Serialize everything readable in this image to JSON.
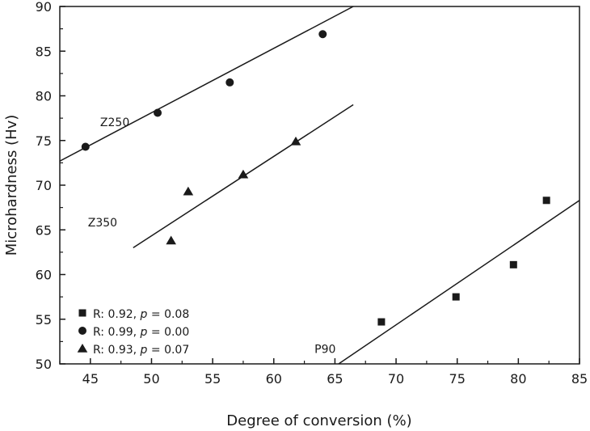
{
  "chart_data": {
    "type": "scatter",
    "xlabel": "Degree of conversion (%)",
    "ylabel": "Microhardness (Hv)",
    "xlim": [
      42.5,
      85
    ],
    "ylim": [
      50,
      90
    ],
    "xticks": [
      "45",
      "50",
      "55",
      "60",
      "65",
      "70",
      "75",
      "80",
      "85"
    ],
    "yticks": [
      "50",
      "55",
      "60",
      "65",
      "70",
      "75",
      "80",
      "85",
      "90"
    ],
    "grid": false,
    "legend_position": "bottom-left",
    "series": [
      {
        "name": "P90",
        "marker": "square",
        "x": [
          68.8,
          74.9,
          79.6,
          82.3
        ],
        "y": [
          54.7,
          57.5,
          61.1,
          68.3
        ],
        "fit": {
          "x": [
            65.3,
            85
          ],
          "y": [
            50,
            68.3
          ]
        }
      },
      {
        "name": "Z250",
        "marker": "circle",
        "x": [
          44.6,
          50.5,
          56.4,
          64.0
        ],
        "y": [
          74.3,
          78.1,
          81.5,
          86.9
        ],
        "fit": {
          "x": [
            42.5,
            66.5
          ],
          "y": [
            72.7,
            90
          ]
        }
      },
      {
        "name": "Z350",
        "marker": "triangle",
        "x": [
          51.6,
          53.0,
          57.5,
          61.8
        ],
        "y": [
          63.8,
          69.3,
          71.2,
          74.9
        ],
        "fit": {
          "x": [
            48.5,
            66.5
          ],
          "y": [
            63.0,
            79.0
          ]
        }
      }
    ],
    "legend": [
      {
        "marker": "square",
        "r_text": "R: 0.92, ",
        "p_label": "p",
        "p_text": " = 0.08"
      },
      {
        "marker": "circle",
        "r_text": "R: 0.99, ",
        "p_label": "p",
        "p_text": " = 0.00"
      },
      {
        "marker": "triangle",
        "r_text": "R: 0.93, ",
        "p_label": "p",
        "p_text": " = 0.07"
      }
    ]
  }
}
